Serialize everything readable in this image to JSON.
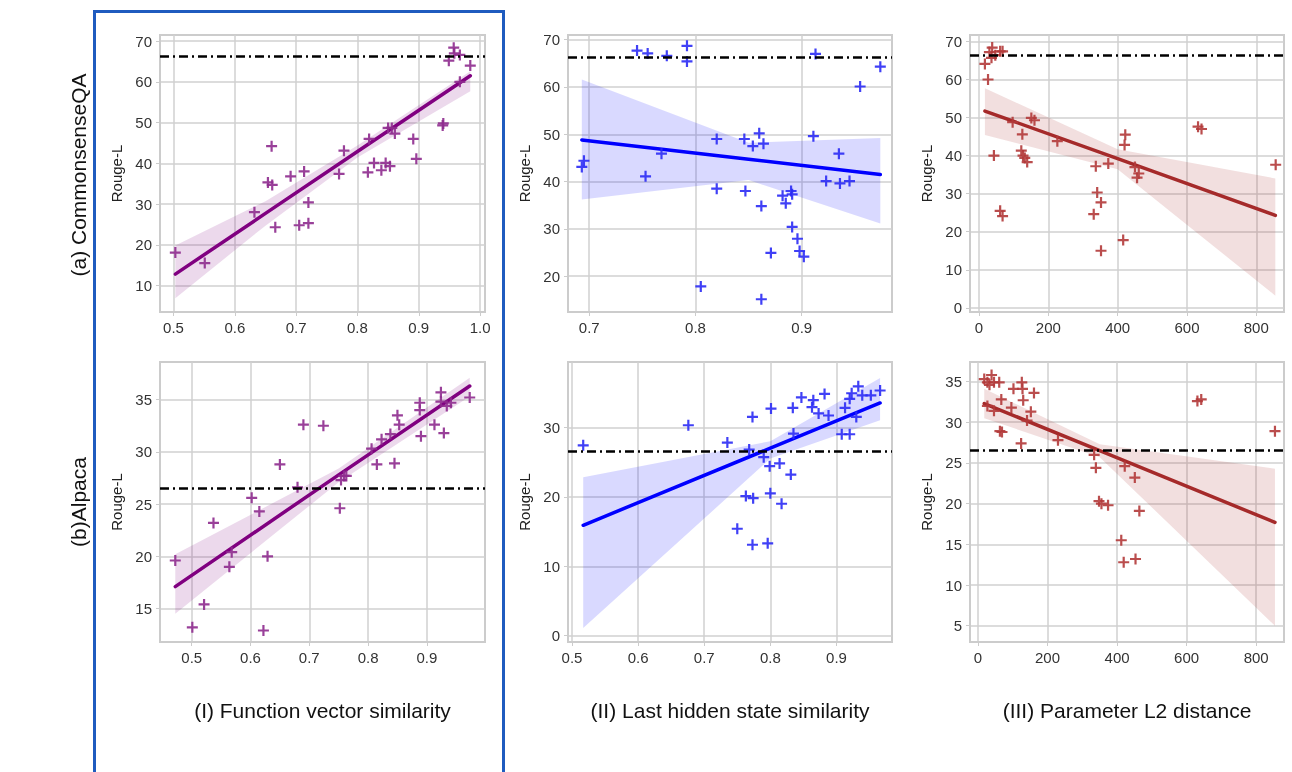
{
  "chart_data": [
    {
      "type": "scatter",
      "ylabel": "Rouge-L",
      "annotations": [
        "(a) CommonsenseQA"
      ],
      "xlim": [
        0.478,
        1.008
      ],
      "ylim": [
        3.5,
        71.5
      ],
      "xticks": [
        0.5,
        0.6,
        0.7,
        0.8,
        0.9,
        {
          "value": 1,
          "label": "1.0"
        }
      ],
      "yticks": [
        10,
        20,
        30,
        40,
        50,
        60,
        70
      ],
      "grid": true,
      "ref_lines": [
        {
          "axis": "y",
          "value": 66.3,
          "color": "#000000",
          "line_style": "dashdot"
        }
      ],
      "series": [
        {
          "type": "scatter",
          "color": "#8e2b8e",
          "marker": "cross",
          "x": [
            0.503,
            0.551,
            0.632,
            0.654,
            0.66,
            0.661,
            0.666,
            0.691,
            0.705,
            0.713,
            0.72,
            0.72,
            0.77,
            0.778,
            0.817,
            0.819,
            0.827,
            0.839,
            0.846,
            0.853,
            0.85,
            0.856,
            0.861,
            0.891,
            0.896,
            0.94,
            0.939,
            0.949,
            0.957,
            0.958,
            0.967,
            0.967,
            0.984
          ],
          "values": [
            18.1,
            15.5,
            28.0,
            35.3,
            44.2,
            34.7,
            24.3,
            36.8,
            24.8,
            38.0,
            30.4,
            25.3,
            37.4,
            43.1,
            37.8,
            46.0,
            40.1,
            38.3,
            40.1,
            39.3,
            48.7,
            48.7,
            47.3,
            46.0,
            41.1,
            49.8,
            49.3,
            65.2,
            68.4,
            67.0,
            66.6,
            60.0,
            64.0
          ]
        },
        {
          "type": "line",
          "color": "#800080",
          "marker": "none",
          "line_style": "solid",
          "x": [
            0.503,
            0.65,
            0.8,
            0.984
          ],
          "values": [
            12.8,
            27.7,
            42.9,
            61.5
          ],
          "lower": [
            6.9,
            24.7,
            41.4,
            57.7
          ],
          "upper": [
            19.8,
            30.7,
            44.4,
            62.6
          ]
        }
      ]
    },
    {
      "type": "scatter",
      "ylabel": "Rouge-L",
      "xlim": [
        0.68,
        0.985
      ],
      "ylim": [
        12.4,
        71
      ],
      "xticks": [
        0.7,
        0.8,
        0.9
      ],
      "yticks": [
        20,
        30,
        40,
        50,
        60,
        70
      ],
      "grid": true,
      "ref_lines": [
        {
          "axis": "y",
          "value": 66.3,
          "color": "#000000",
          "line_style": "dashdot"
        }
      ],
      "series": [
        {
          "type": "scatter",
          "color": "#2b2bf5",
          "marker": "cross",
          "x": [
            0.693,
            0.695,
            0.745,
            0.755,
            0.753,
            0.768,
            0.773,
            0.792,
            0.792,
            0.805,
            0.82,
            0.82,
            0.846,
            0.847,
            0.854,
            0.86,
            0.864,
            0.862,
            0.862,
            0.871,
            0.882,
            0.885,
            0.89,
            0.891,
            0.891,
            0.896,
            0.898,
            0.902,
            0.911,
            0.913,
            0.923,
            0.935,
            0.936,
            0.945,
            0.955,
            0.974
          ],
          "values": [
            43.1,
            44.4,
            67.7,
            67.1,
            41.1,
            45.9,
            66.6,
            68.7,
            65.4,
            17.8,
            49.0,
            38.5,
            49.0,
            38.0,
            47.5,
            50.2,
            48.0,
            34.8,
            15.1,
            24.9,
            37.0,
            35.4,
            38.0,
            37.3,
            30.4,
            27.9,
            25.3,
            24.1,
            49.6,
            67.0,
            40.1,
            45.9,
            39.6,
            40.1,
            60.1,
            64.3
          ]
        },
        {
          "type": "line",
          "color": "#0000ff",
          "marker": "none",
          "line_style": "solid",
          "x": [
            0.693,
            0.85,
            0.974
          ],
          "values": [
            48.8,
            44.7,
            41.5
          ],
          "lower": [
            36.2,
            40.3,
            31.1
          ],
          "upper": [
            61.6,
            48.2,
            49.2
          ]
        }
      ]
    },
    {
      "type": "scatter",
      "ylabel": "Rouge-L",
      "xlim": [
        -26,
        880
      ],
      "ylim": [
        -1.1,
        71.7
      ],
      "xticks": [
        0,
        200,
        400,
        600,
        800
      ],
      "yticks": [
        0,
        10,
        20,
        30,
        40,
        50,
        60,
        70
      ],
      "grid": true,
      "ref_lines": [
        {
          "axis": "y",
          "value": 66.3,
          "color": "#000000",
          "line_style": "dashdot"
        }
      ],
      "series": [
        {
          "type": "scatter",
          "color": "#b33a3a",
          "marker": "cross",
          "x": [
            17,
            26,
            30,
            36,
            38,
            47,
            61,
            68,
            43,
            61,
            68,
            97,
            125,
            122,
            127,
            132,
            139,
            151,
            160,
            226,
            331,
            337,
            341,
            352,
            352,
            373,
            416,
            420,
            422,
            450,
            456,
            461,
            632,
            642,
            856
          ],
          "values": [
            64.1,
            60.0,
            67.2,
            65.7,
            68.4,
            66.4,
            67.4,
            67.4,
            40.0,
            25.5,
            24.1,
            48.8,
            45.6,
            41.3,
            40.0,
            39.4,
            38.3,
            49.9,
            49.3,
            43.8,
            24.6,
            37.2,
            30.3,
            27.7,
            15.0,
            37.9,
            17.8,
            42.8,
            45.5,
            37.0,
            34.2,
            35.3,
            47.6,
            47.0,
            37.6
          ]
        },
        {
          "type": "line",
          "color": "#a52a2a",
          "marker": "none",
          "line_style": "solid",
          "x": [
            17,
            400,
            855
          ],
          "values": [
            51.7,
            39.2,
            24.3
          ],
          "lower": [
            45.4,
            36.4,
            3.2
          ],
          "upper": [
            57.7,
            41.7,
            34.0
          ]
        }
      ]
    },
    {
      "type": "scatter",
      "xlabel": "(I) Function vector similarity",
      "ylabel": "Rouge-L",
      "annotations": [
        "(b)Alpaca"
      ],
      "xlim": [
        0.446,
        0.999
      ],
      "ylim": [
        11.8,
        38.6
      ],
      "xticks": [
        0.5,
        0.6,
        0.7,
        0.8,
        0.9
      ],
      "yticks": [
        15,
        20,
        25,
        30,
        35
      ],
      "grid": true,
      "ref_lines": [
        {
          "axis": "y",
          "value": 26.5,
          "color": "#000000",
          "line_style": "dashdot"
        }
      ],
      "series": [
        {
          "type": "scatter",
          "color": "#8e2b8e",
          "marker": "cross",
          "x": [
            0.472,
            0.501,
            0.521,
            0.537,
            0.564,
            0.568,
            0.602,
            0.615,
            0.622,
            0.629,
            0.65,
            0.68,
            0.69,
            0.724,
            0.752,
            0.754,
            0.759,
            0.763,
            0.806,
            0.815,
            0.823,
            0.838,
            0.845,
            0.85,
            0.853,
            0.888,
            0.888,
            0.89,
            0.913,
            0.929,
            0.924,
            0.924,
            0.934,
            0.941,
            0.973
          ],
          "values": [
            19.6,
            13.2,
            15.4,
            23.2,
            19.0,
            20.4,
            25.6,
            24.3,
            12.9,
            20.0,
            28.8,
            26.6,
            32.6,
            32.5,
            24.6,
            27.3,
            27.7,
            27.7,
            30.3,
            28.8,
            31.2,
            31.7,
            28.9,
            33.5,
            32.6,
            34.7,
            34.0,
            31.5,
            32.6,
            31.8,
            35.7,
            34.8,
            34.4,
            34.7,
            35.2
          ]
        },
        {
          "type": "line",
          "color": "#800080",
          "marker": "none",
          "line_style": "solid",
          "x": [
            0.472,
            0.75,
            0.973
          ],
          "values": [
            17.1,
            27.8,
            36.3
          ],
          "lower": [
            14.5,
            27.1,
            35.3
          ],
          "upper": [
            20.2,
            28.4,
            37.1
          ]
        }
      ]
    },
    {
      "type": "scatter",
      "xlabel": "(II) Last hidden state similarity",
      "ylabel": "Rouge-L",
      "xlim": [
        0.494,
        0.984
      ],
      "ylim": [
        -0.9,
        39.4
      ],
      "xticks": [
        0.5,
        0.6,
        0.7,
        0.8,
        0.9
      ],
      "yticks": [
        0,
        10,
        20,
        30
      ],
      "grid": true,
      "ref_lines": [
        {
          "axis": "y",
          "value": 26.5,
          "color": "#000000",
          "line_style": "dashdot"
        }
      ],
      "series": [
        {
          "type": "scatter",
          "color": "#2b2bf5",
          "marker": "cross",
          "x": [
            0.517,
            0.676,
            0.735,
            0.75,
            0.763,
            0.768,
            0.773,
            0.773,
            0.774,
            0.79,
            0.796,
            0.799,
            0.8,
            0.801,
            0.814,
            0.817,
            0.831,
            0.834,
            0.835,
            0.847,
            0.863,
            0.865,
            0.873,
            0.882,
            0.888,
            0.908,
            0.913,
            0.92,
            0.92,
            0.923,
            0.93,
            0.933,
            0.939,
            0.952,
            0.966
          ],
          "values": [
            27.4,
            30.3,
            27.8,
            15.4,
            20.1,
            26.8,
            31.5,
            13.1,
            19.8,
            25.7,
            13.3,
            24.4,
            20.5,
            32.7,
            24.8,
            19.0,
            23.2,
            32.8,
            29.1,
            34.3,
            32.9,
            33.9,
            32.0,
            34.8,
            31.7,
            29.0,
            32.8,
            29.0,
            34.1,
            34.9,
            31.5,
            35.9,
            34.6,
            34.6,
            35.3
          ]
        },
        {
          "type": "line",
          "color": "#0000ff",
          "marker": "none",
          "line_style": "solid",
          "x": [
            0.517,
            0.8,
            0.966
          ],
          "values": [
            15.9,
            27.0,
            33.5
          ],
          "lower": [
            1.1,
            25.5,
            31.0
          ],
          "upper": [
            22.8,
            28.0,
            37.1
          ]
        }
      ]
    },
    {
      "type": "scatter",
      "xlabel": "(III) Parameter L2 distance",
      "ylabel": "Rouge-L",
      "xlim": [
        -23,
        880
      ],
      "ylim": [
        3.0,
        37.4
      ],
      "xticks": [
        0,
        200,
        400,
        600,
        800
      ],
      "yticks": [
        5,
        10,
        15,
        20,
        25,
        30,
        35
      ],
      "grid": true,
      "ref_lines": [
        {
          "axis": "y",
          "value": 26.5,
          "color": "#000000",
          "line_style": "dashdot"
        }
      ],
      "series": [
        {
          "type": "scatter",
          "color": "#b33a3a",
          "marker": "cross",
          "x": [
            18,
            27,
            33,
            39,
            46,
            61,
            27,
            46,
            67,
            63,
            69,
            96,
            102,
            126,
            128,
            130,
            124,
            141,
            152,
            161,
            230,
            334,
            339,
            348,
            355,
            374,
            412,
            419,
            422,
            451,
            453,
            464,
            631,
            642,
            854
          ],
          "values": [
            35.3,
            34.9,
            34.6,
            35.8,
            34.9,
            34.9,
            32.0,
            31.4,
            32.8,
            28.9,
            28.8,
            31.8,
            34.1,
            34.9,
            34.1,
            32.7,
            27.4,
            30.2,
            31.3,
            33.6,
            27.8,
            26.0,
            24.4,
            20.3,
            20.0,
            19.8,
            15.5,
            12.8,
            24.6,
            23.2,
            13.2,
            19.1,
            32.6,
            32.8,
            28.9
          ]
        },
        {
          "type": "line",
          "color": "#a52a2a",
          "marker": "none",
          "line_style": "solid",
          "x": [
            18,
            350,
            854
          ],
          "values": [
            32.3,
            26.5,
            17.7
          ],
          "lower": [
            30.5,
            25.7,
            5.0
          ],
          "upper": [
            34.1,
            27.3,
            24.3
          ]
        }
      ]
    }
  ]
}
